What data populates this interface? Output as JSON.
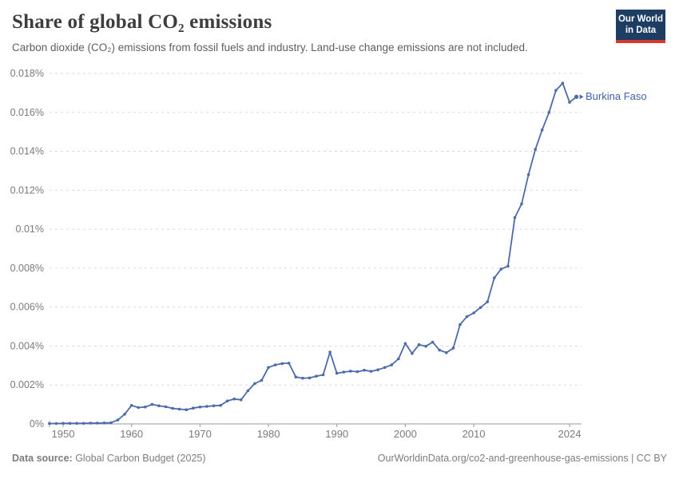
{
  "header": {
    "title": "Share of global CO₂ emissions",
    "subtitle": "Carbon dioxide (CO₂) emissions from fossil fuels and industry. Land-use change emissions are not included.",
    "logo": {
      "line1": "Our World",
      "line2": "in Data"
    }
  },
  "chart_data": {
    "type": "line",
    "title": "Share of global CO₂ emissions",
    "entity_label": "Burkina Faso",
    "unit": "%",
    "grid": true,
    "legend_position": "end-of-line-label",
    "ylim": [
      0,
      0.018
    ],
    "y_ticks": [
      {
        "value": 0,
        "label": "0%"
      },
      {
        "value": 0.002,
        "label": "0.002%"
      },
      {
        "value": 0.004,
        "label": "0.004%"
      },
      {
        "value": 0.006,
        "label": "0.006%"
      },
      {
        "value": 0.008,
        "label": "0.008%"
      },
      {
        "value": 0.01,
        "label": "0.01%"
      },
      {
        "value": 0.012,
        "label": "0.012%"
      },
      {
        "value": 0.014,
        "label": "0.014%"
      },
      {
        "value": 0.016,
        "label": "0.016%"
      },
      {
        "value": 0.018,
        "label": "0.018%"
      }
    ],
    "x_ticks": [
      1950,
      1960,
      1970,
      1980,
      1990,
      2000,
      2010,
      2024
    ],
    "x": [
      1948,
      1949,
      1950,
      1951,
      1952,
      1953,
      1954,
      1955,
      1956,
      1957,
      1958,
      1959,
      1960,
      1961,
      1962,
      1963,
      1964,
      1965,
      1966,
      1967,
      1968,
      1969,
      1970,
      1971,
      1972,
      1973,
      1974,
      1975,
      1976,
      1977,
      1978,
      1979,
      1980,
      1981,
      1982,
      1983,
      1984,
      1985,
      1986,
      1987,
      1988,
      1989,
      1990,
      1991,
      1992,
      1993,
      1994,
      1995,
      1996,
      1997,
      1998,
      1999,
      2000,
      2001,
      2002,
      2003,
      2004,
      2005,
      2006,
      2007,
      2008,
      2009,
      2010,
      2011,
      2012,
      2013,
      2014,
      2015,
      2016,
      2017,
      2018,
      2019,
      2020,
      2021,
      2022,
      2023,
      2024,
      2025
    ],
    "series": [
      {
        "name": "Burkina Faso",
        "values": [
          2e-05,
          2e-05,
          3e-05,
          3e-05,
          3e-05,
          3e-05,
          4e-05,
          4e-05,
          5e-05,
          6e-05,
          0.0002,
          0.0005,
          0.00095,
          0.00084,
          0.00087,
          0.001,
          0.00093,
          0.00088,
          0.0008,
          0.00076,
          0.00073,
          0.00081,
          0.00087,
          0.0009,
          0.00093,
          0.00095,
          0.00118,
          0.00128,
          0.00124,
          0.0017,
          0.00207,
          0.00224,
          0.0029,
          0.00303,
          0.0031,
          0.00312,
          0.00241,
          0.00235,
          0.00236,
          0.00245,
          0.00252,
          0.00369,
          0.0026,
          0.00266,
          0.00271,
          0.00268,
          0.00276,
          0.0027,
          0.00278,
          0.0029,
          0.00303,
          0.00334,
          0.00413,
          0.00362,
          0.00407,
          0.00399,
          0.0042,
          0.00379,
          0.00366,
          0.00389,
          0.0051,
          0.00551,
          0.0057,
          0.00598,
          0.00627,
          0.0075,
          0.00795,
          0.0081,
          0.0106,
          0.0113,
          0.0128,
          0.0141,
          0.0151,
          0.016,
          0.01713,
          0.0175,
          0.01652,
          0.0168
        ]
      }
    ]
  },
  "colors": {
    "line": "#4c6ba9",
    "entity_label": "#3d63a9",
    "gridline": "#dadada",
    "axis": "#999999",
    "tick_text": "#7b7b7b",
    "logo_bg": "#1d3d63",
    "logo_accent": "#d6392e"
  },
  "footer": {
    "source_label": "Data source:",
    "source_value": " Global Carbon Budget (2025)",
    "right_text": "OurWorldinData.org/co2-and-greenhouse-gas-emissions | CC BY"
  }
}
